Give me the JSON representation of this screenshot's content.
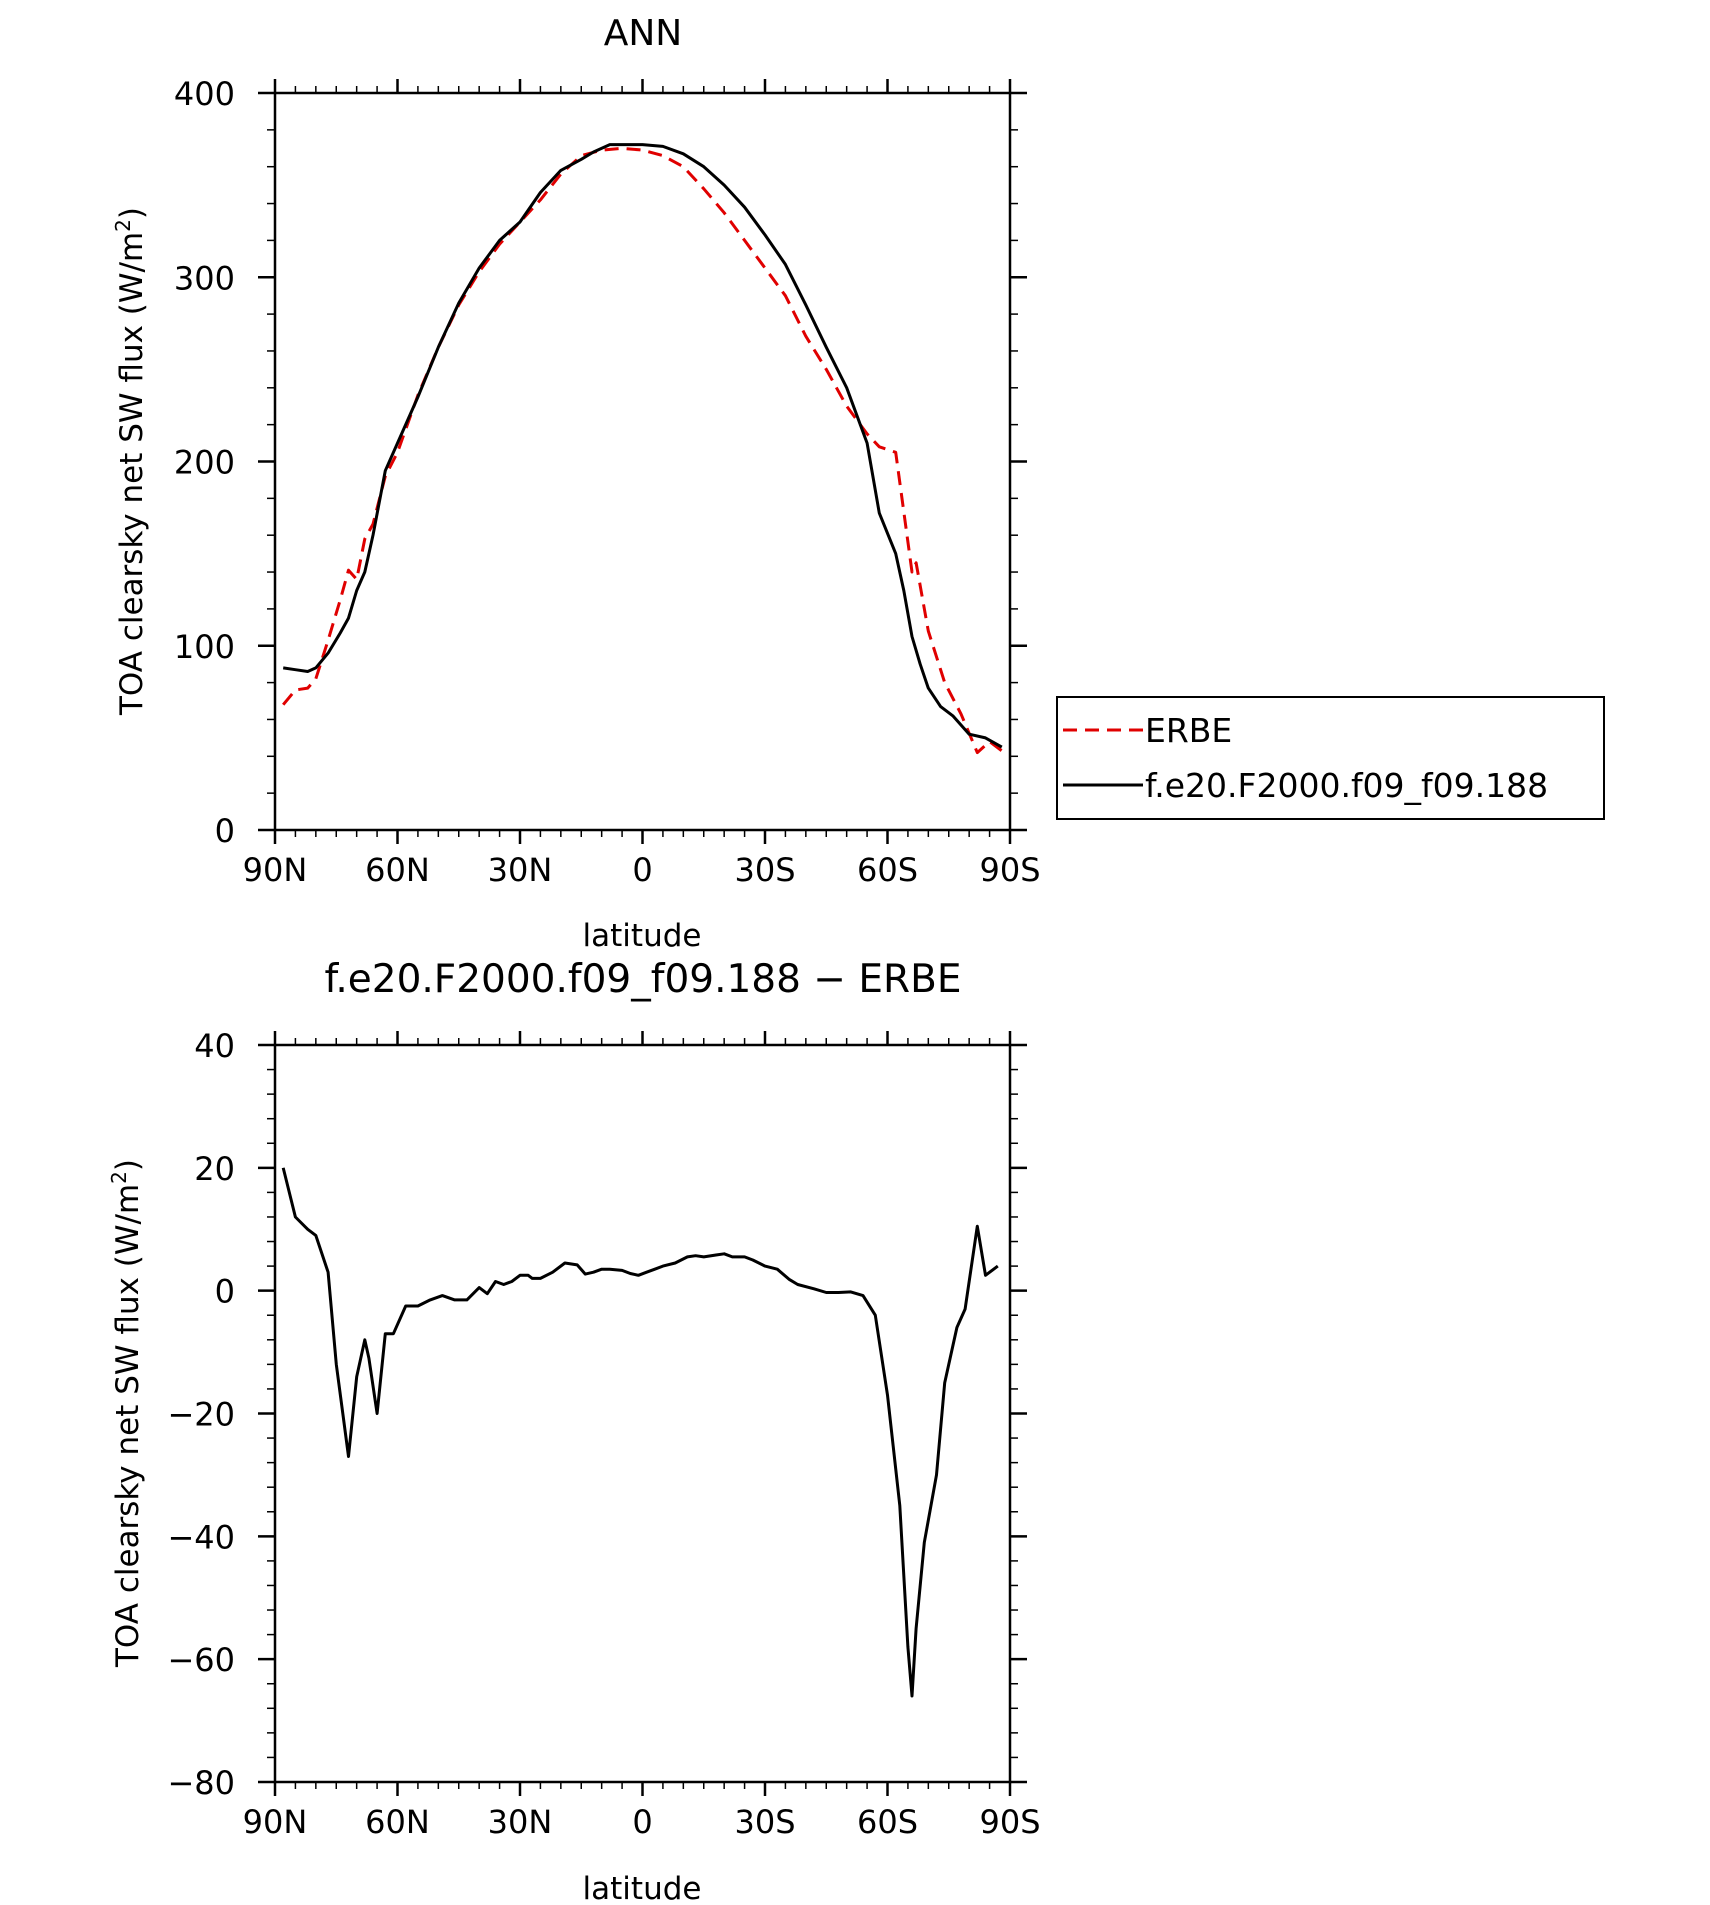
{
  "chart_data": [
    {
      "type": "line",
      "title": "ANN",
      "xlabel": "latitude",
      "ylabel": "TOA clearsky net SW flux (W/m",
      "ylabel_sup": "2",
      "ylabel_close": ")",
      "xlim": [
        90,
        -90
      ],
      "ylim": [
        0,
        400
      ],
      "xticks": [
        90,
        60,
        30,
        0,
        -30,
        -60,
        -90
      ],
      "xtick_labels": [
        "90N",
        "60N",
        "30N",
        "0",
        "30S",
        "60S",
        "90S"
      ],
      "yticks": [
        0,
        100,
        200,
        300,
        400
      ],
      "ytick_labels": [
        "0",
        "100",
        "200",
        "300",
        "400"
      ],
      "legend": {
        "placement": "right"
      },
      "series": [
        {
          "name": "ERBE",
          "color": "#e00000",
          "dash": "dashed",
          "x": [
            88,
            85,
            82,
            80,
            77,
            74,
            72,
            70,
            68,
            66,
            63,
            60,
            55,
            50,
            45,
            40,
            35,
            30,
            25,
            20,
            15,
            10,
            5,
            0,
            -5,
            -10,
            -15,
            -20,
            -25,
            -30,
            -35,
            -40,
            -45,
            -50,
            -55,
            -58,
            -62,
            -66,
            -67,
            -70,
            -74,
            -78,
            -82,
            -85,
            -88
          ],
          "y": [
            68,
            76,
            77,
            82,
            103,
            125,
            141,
            136,
            158,
            166,
            192,
            205,
            236,
            262,
            285,
            303,
            318,
            330,
            342,
            356,
            366,
            369,
            370,
            369,
            366,
            360,
            348,
            335,
            320,
            305,
            290,
            268,
            250,
            230,
            215,
            208,
            205,
            140,
            145,
            108,
            80,
            63,
            42,
            48,
            43
          ]
        },
        {
          "name": "f.e20.F2000.f09_f09.188",
          "color": "#000000",
          "dash": "solid",
          "x": [
            88,
            85,
            82,
            80,
            77,
            74,
            72,
            70,
            68,
            66,
            63,
            60,
            55,
            50,
            45,
            40,
            35,
            30,
            25,
            20,
            15,
            12,
            8,
            5,
            0,
            -5,
            -10,
            -15,
            -20,
            -25,
            -30,
            -35,
            -40,
            -45,
            -50,
            -55,
            -58,
            -62,
            -64,
            -66,
            -68,
            -70,
            -73,
            -76,
            -80,
            -84,
            -88
          ],
          "y": [
            88,
            87,
            86,
            88,
            96,
            107,
            115,
            130,
            140,
            160,
            195,
            210,
            235,
            262,
            286,
            305,
            320,
            330,
            346,
            358,
            364,
            368,
            372,
            372,
            372,
            371,
            367,
            360,
            350,
            338,
            323,
            307,
            285,
            262,
            240,
            210,
            172,
            150,
            130,
            105,
            90,
            77,
            67,
            62,
            52,
            50,
            45
          ]
        }
      ]
    },
    {
      "type": "line",
      "title": "f.e20.F2000.f09_f09.188 − ERBE",
      "xlabel": "latitude",
      "ylabel": "TOA clearsky net SW flux (W/m",
      "ylabel_sup": "2",
      "ylabel_close": ")",
      "xlim": [
        90,
        -90
      ],
      "ylim": [
        -80,
        40
      ],
      "xticks": [
        90,
        60,
        30,
        0,
        -30,
        -60,
        -90
      ],
      "xtick_labels": [
        "90N",
        "60N",
        "30N",
        "0",
        "30S",
        "60S",
        "90S"
      ],
      "yticks": [
        -80,
        -60,
        -40,
        -20,
        0,
        20,
        40
      ],
      "ytick_labels": [
        "−80",
        "−60",
        "−40",
        "−20",
        "0",
        "20",
        "40"
      ],
      "series": [
        {
          "name": "f.e20.F2000.f09_f09.188",
          "color": "#000000",
          "dash": "solid",
          "x": [
            88,
            85,
            82,
            80,
            77,
            75,
            72,
            70,
            68,
            67,
            65,
            63,
            61,
            58,
            55,
            52,
            49,
            46,
            43,
            40,
            38,
            36,
            34,
            32,
            30,
            28,
            27,
            25,
            22,
            19,
            16,
            14,
            12,
            10,
            8,
            5,
            3,
            1,
            -1,
            -3,
            -5,
            -8,
            -11,
            -13,
            -15,
            -18,
            -20,
            -22,
            -25,
            -27,
            -30,
            -33,
            -36,
            -38,
            -42,
            -45,
            -48,
            -51,
            -54,
            -57,
            -60,
            -63,
            -65,
            -66,
            -67,
            -69,
            -72,
            -74,
            -77,
            -79,
            -82,
            -84,
            -87
          ],
          "y": [
            20,
            12,
            10,
            9,
            3,
            -12,
            -27,
            -14,
            -8,
            -11,
            -20,
            -7,
            -7,
            -2.5,
            -2.5,
            -1.5,
            -0.8,
            -1.5,
            -1.5,
            0.5,
            -0.5,
            1.5,
            1,
            1.5,
            2.5,
            2.5,
            2,
            2,
            3,
            4.5,
            4.2,
            2.7,
            3,
            3.5,
            3.5,
            3.3,
            2.8,
            2.5,
            3,
            3.5,
            4,
            4.5,
            5.5,
            5.7,
            5.5,
            5.8,
            6,
            5.5,
            5.5,
            5,
            4,
            3.5,
            1.8,
            1,
            0.3,
            -0.3,
            -0.3,
            -0.2,
            -0.8,
            -4,
            -17,
            -35,
            -58,
            -66,
            -55,
            -41,
            -30,
            -15,
            -6,
            -3,
            10.5,
            2.5,
            4
          ]
        }
      ]
    }
  ]
}
